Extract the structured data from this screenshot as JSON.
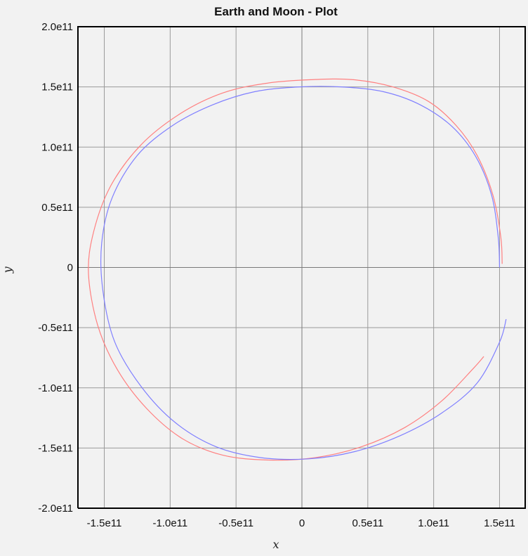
{
  "chart_data": {
    "type": "line",
    "title": "Earth and Moon - Plot",
    "xlabel": "x",
    "ylabel": "y",
    "xlim": [
      -170000000000.0,
      170000000000.0
    ],
    "ylim": [
      -200000000000.0,
      200000000000.0
    ],
    "x_ticks": [
      {
        "value": -150000000000.0,
        "label": "-1.5e11"
      },
      {
        "value": -100000000000.0,
        "label": "-1.0e11"
      },
      {
        "value": -50000000000.0,
        "label": "-0.5e11"
      },
      {
        "value": 0,
        "label": "0"
      },
      {
        "value": 50000000000.0,
        "label": "0.5e11"
      },
      {
        "value": 100000000000.0,
        "label": "1.0e11"
      },
      {
        "value": 150000000000.0,
        "label": "1.5e11"
      }
    ],
    "y_ticks": [
      {
        "value": 200000000000.0,
        "label": "2.0e11"
      },
      {
        "value": 150000000000.0,
        "label": "1.5e11"
      },
      {
        "value": 100000000000.0,
        "label": "1.0e11"
      },
      {
        "value": 50000000000.0,
        "label": "0.5e11"
      },
      {
        "value": 0,
        "label": "0"
      },
      {
        "value": -50000000000.0,
        "label": "-0.5e11"
      },
      {
        "value": -100000000000.0,
        "label": "-1.0e11"
      },
      {
        "value": -150000000000.0,
        "label": "-1.5e11"
      },
      {
        "value": -200000000000.0,
        "label": "-2.0e11"
      }
    ],
    "grid": true,
    "series": [
      {
        "color": "#ff8080",
        "x": [
          152000000000.0,
          151000000000.0,
          145000000000.0,
          133000000000.0,
          117000000000.0,
          96000000000.0,
          69000000000.0,
          39000000000.0,
          7000000000.0,
          -27000000000.0,
          -60000000000.0,
          -92000000000.0,
          -122000000000.0,
          -145000000000.0,
          -158000000000.0,
          -162000000000.0,
          -155000000000.0,
          -140000000000.0,
          -118000000000.0,
          -91000000000.0,
          -60000000000.0,
          -25000000000.0,
          10000000000.0,
          45000000000.0,
          78000000000.0,
          106000000000.0,
          130000000000.0,
          138000000000.0
        ],
        "y": [
          3000000000.0,
          25000000000.0,
          60000000000.0,
          93000000000.0,
          118000000000.0,
          138000000000.0,
          150000000000.0,
          156000000000.0,
          156000000000.0,
          153000000000.0,
          145000000000.0,
          128000000000.0,
          102000000000.0,
          68000000000.0,
          30000000000.0,
          -5000000000.0,
          -48000000000.0,
          -85000000000.0,
          -117000000000.0,
          -142000000000.0,
          -156000000000.0,
          -160000000000.0,
          -158000000000.0,
          -149000000000.0,
          -133000000000.0,
          -111000000000.0,
          -84000000000.0,
          -74000000000.0
        ]
      },
      {
        "color": "#8080ff",
        "x": [
          150000000000.0,
          149000000000.0,
          144000000000.0,
          132000000000.0,
          114000000000.0,
          90000000000.0,
          62000000000.0,
          30000000000.0,
          -2000000000.0,
          -36000000000.0,
          -68000000000.0,
          -98000000000.0,
          -125000000000.0,
          -144000000000.0,
          -152000000000.0,
          -151000000000.0,
          -142000000000.0,
          -122000000000.0,
          -96000000000.0,
          -65000000000.0,
          -31000000000.0,
          5000000000.0,
          40000000000.0,
          74000000000.0,
          106000000000.0,
          133000000000.0,
          150000000000.0,
          155000000000.0
        ],
        "y": [
          0.0,
          25000000000.0,
          60000000000.0,
          92000000000.0,
          117000000000.0,
          135000000000.0,
          146000000000.0,
          150000000000.0,
          150000000000.0,
          146000000000.0,
          135000000000.0,
          118000000000.0,
          93000000000.0,
          58000000000.0,
          20000000000.0,
          -20000000000.0,
          -62000000000.0,
          -99000000000.0,
          -129000000000.0,
          -149000000000.0,
          -158000000000.0,
          -159000000000.0,
          -153000000000.0,
          -140000000000.0,
          -121000000000.0,
          -96000000000.0,
          -62000000000.0,
          -43000000000.0
        ]
      }
    ]
  }
}
